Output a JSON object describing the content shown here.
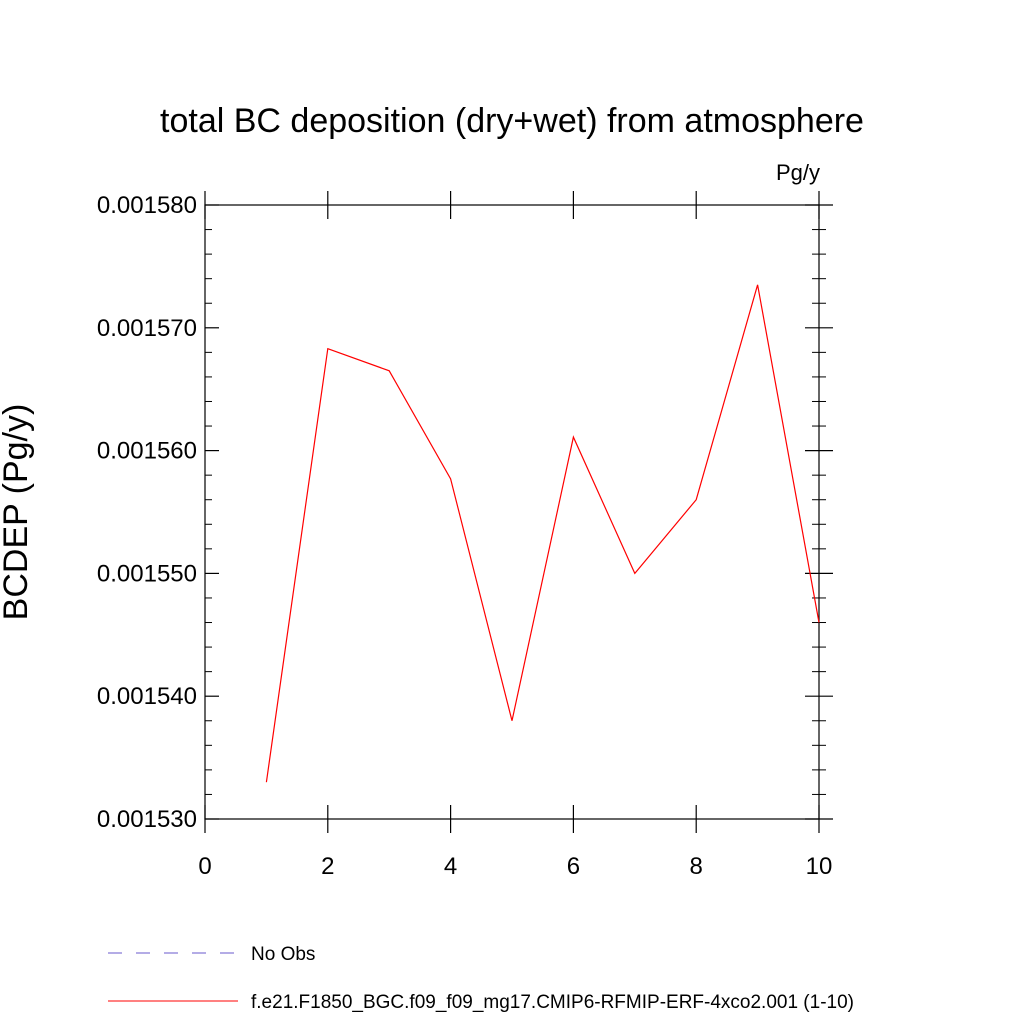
{
  "chart_data": {
    "type": "line",
    "title": "total BC deposition (dry+wet) from atmosphere",
    "units_label": "Pg/y",
    "xlabel": "",
    "ylabel": "BCDEP  (Pg/y)",
    "xlim": [
      0,
      10
    ],
    "ylim": [
      0.00153,
      0.00158
    ],
    "x_ticks": [
      0,
      2,
      4,
      6,
      8,
      10
    ],
    "x_tick_labels": [
      "0",
      "2",
      "4",
      "6",
      "8",
      "10"
    ],
    "y_ticks": [
      0.00153,
      0.00154,
      0.00155,
      0.00156,
      0.00157,
      0.00158
    ],
    "y_tick_labels": [
      "0.001530",
      "0.001540",
      "0.001550",
      "0.001560",
      "0.001570",
      "0.001580"
    ],
    "grid": false,
    "legend_position": "bottom-left",
    "series": [
      {
        "name": "No Obs",
        "color": "#6a5acd",
        "dash": "dashed",
        "x": [],
        "y": []
      },
      {
        "name": "f.e21.F1850_BGC.f09_f09_mg17.CMIP6-RFMIP-ERF-4xco2.001 (1-10)",
        "color": "#ff0000",
        "dash": "solid",
        "x": [
          1,
          2,
          3,
          4,
          5,
          6,
          7,
          8,
          9,
          10
        ],
        "y": [
          0.001533,
          0.0015683,
          0.0015665,
          0.0015577,
          0.001538,
          0.0015611,
          0.00155,
          0.001556,
          0.0015735,
          0.001546
        ]
      }
    ]
  }
}
